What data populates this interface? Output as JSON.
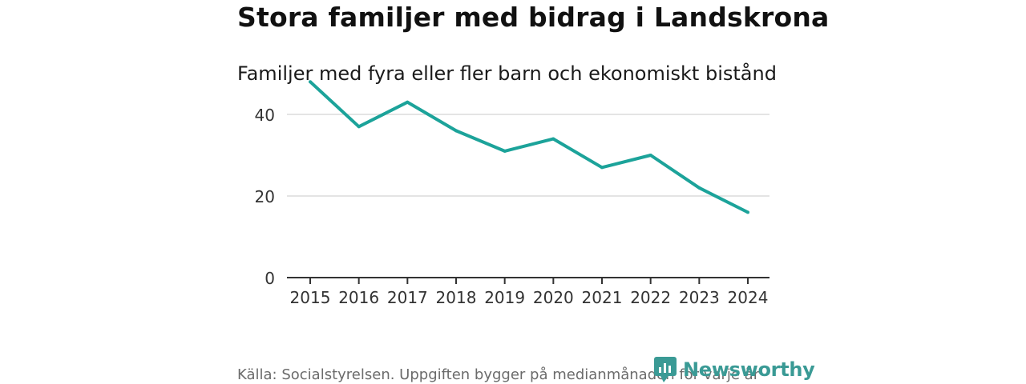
{
  "chart_data": {
    "type": "line",
    "title": "Stora familjer med bidrag i Landskrona",
    "subtitle": "Familjer med fyra eller fler barn och ekonomiskt bistånd",
    "xlabel": "",
    "ylabel": "",
    "categories": [
      "2015",
      "2016",
      "2017",
      "2018",
      "2019",
      "2020",
      "2021",
      "2022",
      "2023",
      "2024"
    ],
    "series": [
      {
        "name": "Familjer",
        "values": [
          48,
          37,
          43,
          36,
          31,
          34,
          27,
          30,
          22,
          16
        ],
        "color": "#1ca39a"
      }
    ],
    "ylim": [
      0,
      50
    ],
    "yticks": [
      0,
      20,
      40
    ],
    "grid": true
  },
  "footer": {
    "source": "Källa: Socialstyrelsen. Uppgiften bygger på medianmånaden för varje år"
  },
  "brand": {
    "name": "Newsworthy",
    "color": "#3a9a95"
  }
}
